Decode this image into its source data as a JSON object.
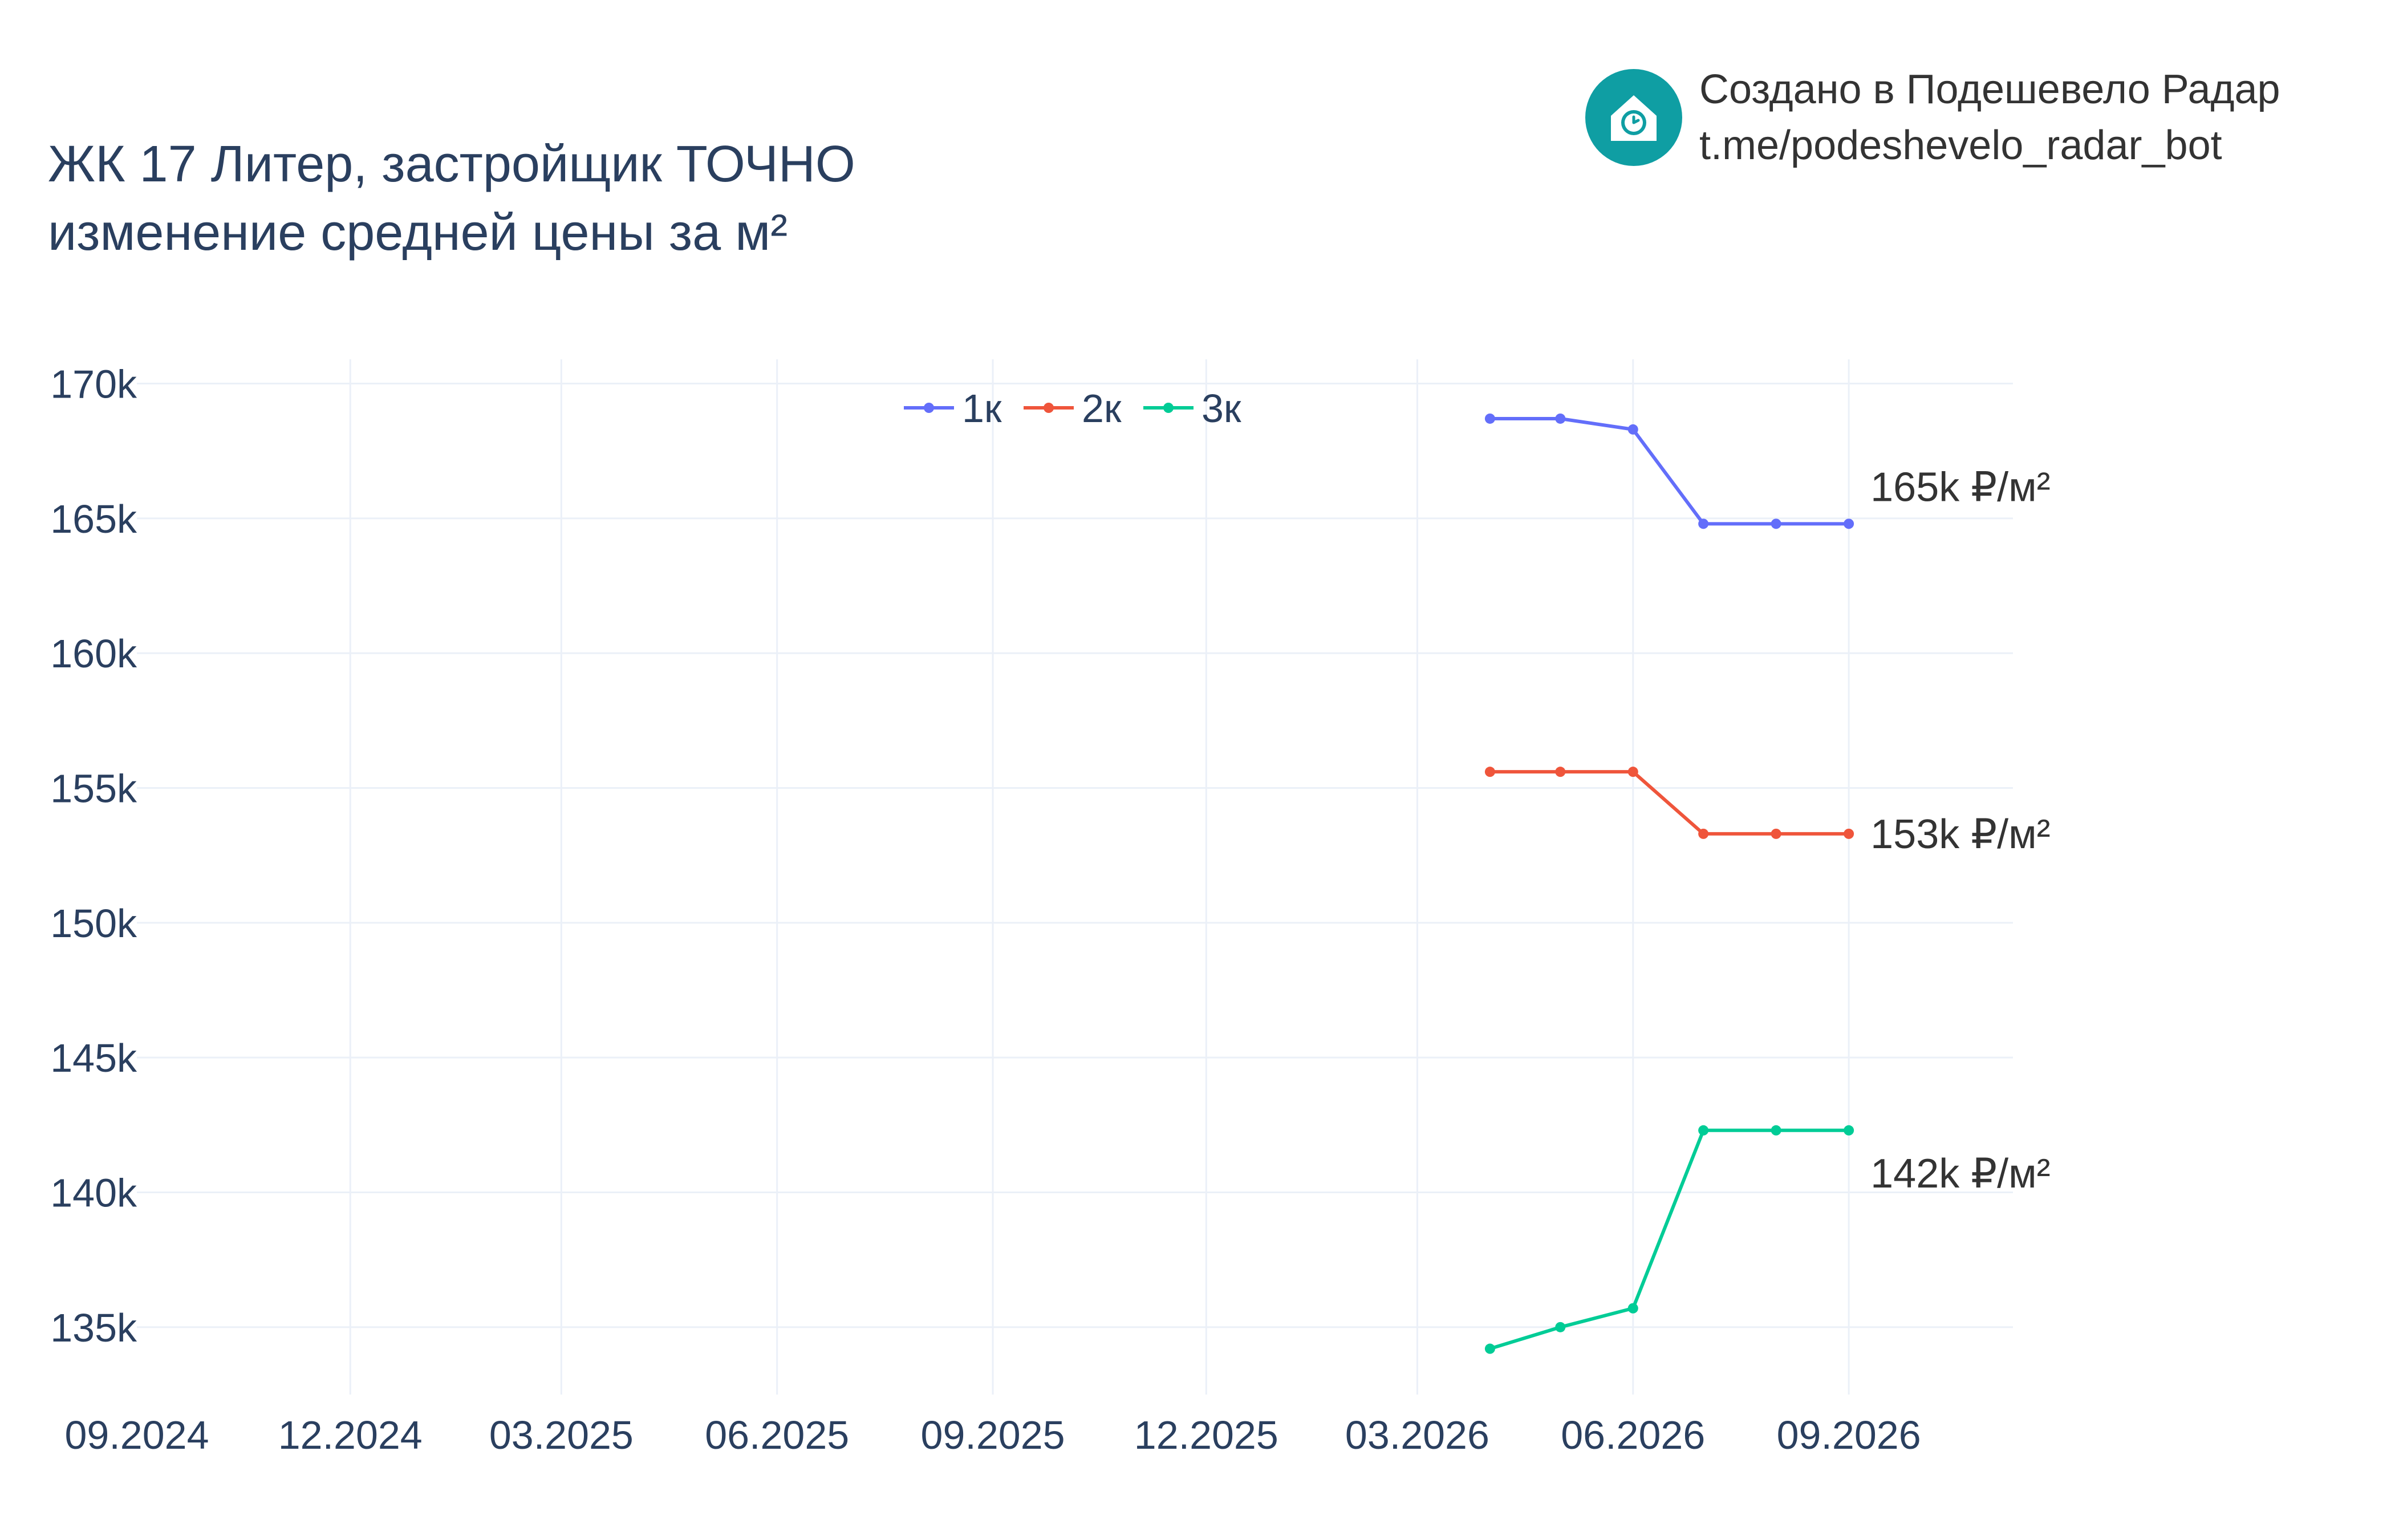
{
  "title": {
    "line1": "ЖК 17 Литер, застройщик ТОЧНО",
    "line2": "изменение средней цены за м²"
  },
  "branding": {
    "line1": "Создано в Подешевело Радар",
    "line2": "t.me/podeshevelo_radar_bot",
    "logo_icon": "house-clock-icon",
    "logo_color": "#0f9ea3"
  },
  "chart_data": {
    "type": "line",
    "xlim": [
      "2024-09-01",
      "2026-11-10"
    ],
    "ylim": [
      132500,
      170900
    ],
    "x_ticks": [
      {
        "date": "2024-09-01",
        "label": "09.2024"
      },
      {
        "date": "2024-12-01",
        "label": "12.2024"
      },
      {
        "date": "2025-03-01",
        "label": "03.2025"
      },
      {
        "date": "2025-06-01",
        "label": "06.2025"
      },
      {
        "date": "2025-09-01",
        "label": "09.2025"
      },
      {
        "date": "2025-12-01",
        "label": "12.2025"
      },
      {
        "date": "2026-03-01",
        "label": "03.2026"
      },
      {
        "date": "2026-06-01",
        "label": "06.2026"
      },
      {
        "date": "2026-09-01",
        "label": "09.2026"
      }
    ],
    "y_ticks": [
      {
        "value": 135000,
        "label": "135k"
      },
      {
        "value": 140000,
        "label": "140k"
      },
      {
        "value": 145000,
        "label": "145k"
      },
      {
        "value": 150000,
        "label": "150k"
      },
      {
        "value": 155000,
        "label": "155k"
      },
      {
        "value": 160000,
        "label": "160k"
      },
      {
        "value": 165000,
        "label": "165k"
      },
      {
        "value": 170000,
        "label": "170k"
      }
    ],
    "x": [
      "2026-04-01",
      "2026-05-01",
      "2026-06-01",
      "2026-07-01",
      "2026-08-01",
      "2026-09-01"
    ],
    "series": [
      {
        "name": "1к",
        "color": "#636efa",
        "values": [
          168700,
          168700,
          168300,
          164800,
          164800,
          164800
        ],
        "end_label": "165k ₽/м²"
      },
      {
        "name": "2к",
        "color": "#ef553b",
        "values": [
          155600,
          155600,
          155600,
          153300,
          153300,
          153300
        ],
        "end_label": "153k ₽/м²"
      },
      {
        "name": "3к",
        "color": "#00cc96",
        "values": [
          134200,
          135000,
          135700,
          142300,
          142300,
          142300
        ],
        "end_label": "142k ₽/м²"
      }
    ],
    "grid": true,
    "legend_position": "top-center",
    "grid_color": "#ebf0f8"
  }
}
